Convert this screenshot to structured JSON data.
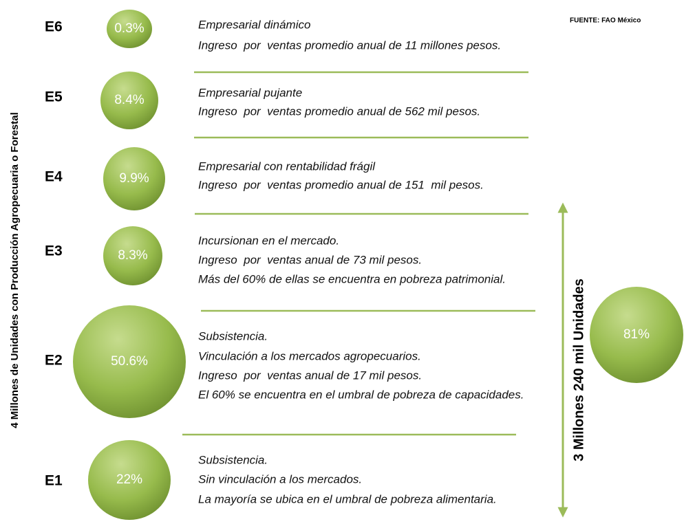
{
  "source": "FUENTE: FAO México",
  "left_label": "4 Millones de Unidades con Producción Agropecuaria o Forestal",
  "right_label": "3 Millones 240 mil Unidades",
  "total_percent": "81%",
  "strata": [
    {
      "level": "E6",
      "percent": "0.3%",
      "lines": [
        "Empresarial dinámico",
        "Ingreso  por  ventas promedio anual de 11 millones pesos."
      ]
    },
    {
      "level": "E5",
      "percent": "8.4%",
      "lines": [
        "Empresarial pujante",
        "Ingreso  por  ventas promedio anual de 562 mil pesos."
      ]
    },
    {
      "level": "E4",
      "percent": "9.9%",
      "lines": [
        "Empresarial con rentabilidad frágil",
        "Ingreso  por  ventas promedio anual de 151  mil pesos."
      ]
    },
    {
      "level": "E3",
      "percent": "8.3%",
      "lines": [
        "Incursionan en el mercado.",
        "Ingreso  por  ventas anual de 73 mil pesos.",
        "Más del 60% de ellas se encuentra en pobreza patrimonial."
      ]
    },
    {
      "level": "E2",
      "percent": "50.6%",
      "lines": [
        "Subsistencia.",
        "Vinculación a los mercados agropecuarios.",
        "Ingreso  por  ventas anual de 17 mil pesos.",
        "El 60% se encuentra en el umbral de pobreza de capacidades."
      ]
    },
    {
      "level": "E1",
      "percent": "22%",
      "lines": [
        "Subsistencia.",
        "Sin vinculación a los mercados.",
        "La mayoría se ubica en el umbral de pobreza alimentaria."
      ]
    }
  ]
}
